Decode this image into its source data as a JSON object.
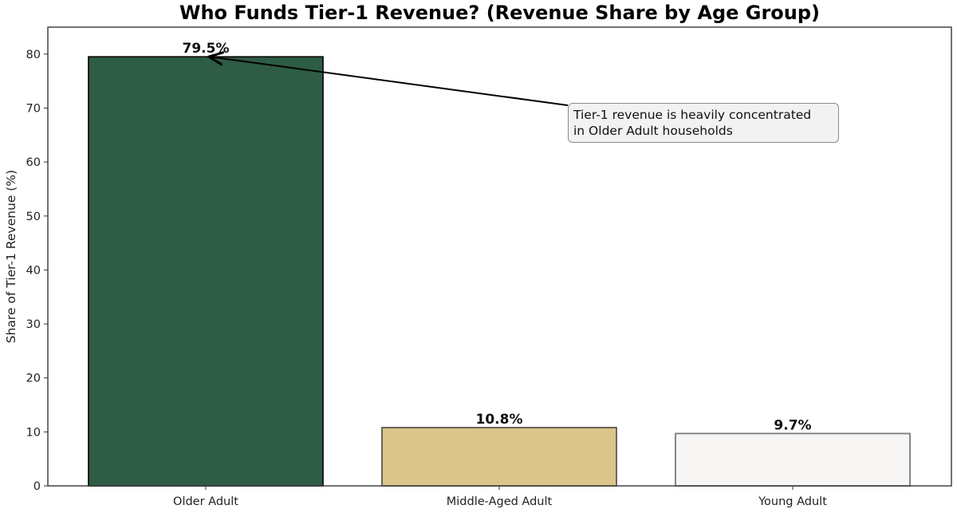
{
  "chart_data": {
    "type": "bar",
    "title": "Who Funds Tier-1 Revenue? (Revenue Share by Age Group)",
    "xlabel": "",
    "ylabel": "Share of Tier-1 Revenue (%)",
    "ylim": [
      0,
      85
    ],
    "yticks": [
      0,
      10,
      20,
      30,
      40,
      50,
      60,
      70,
      80
    ],
    "grid": false,
    "categories": [
      "Older Adult",
      "Middle-Aged Adult",
      "Young Adult"
    ],
    "values": [
      79.5,
      10.8,
      9.7
    ],
    "value_labels": [
      "79.5%",
      "10.8%",
      "9.7%"
    ],
    "colors": [
      "#2e5c45",
      "#dcc58b",
      "#f7f6f4"
    ],
    "edge_colors": [
      "#111111",
      "#5a5a4a",
      "#7a7a7a"
    ],
    "annotation": {
      "text_lines": [
        "Tier-1 revenue is heavily concentrated",
        "in Older Adult households"
      ],
      "points_to": "Older Adult"
    }
  }
}
